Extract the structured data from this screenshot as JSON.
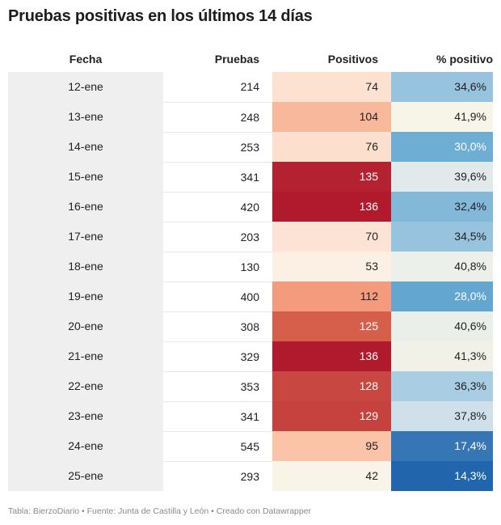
{
  "title": "Pruebas positivas en los últimos 14 días",
  "footer": "Tabla: BierzoDiario • Fuente: Junta de Castilla y León • Creado con Datawrapper",
  "chart_data": {
    "type": "table",
    "title": "Pruebas positivas en los últimos 14 días",
    "columns": [
      "Fecha",
      "Pruebas",
      "Positivos",
      "% positivo"
    ],
    "rows": [
      {
        "fecha": "12-ene",
        "pruebas": "214",
        "positivos": "74",
        "pct": "34,6%",
        "pos_color": "#fde2d2",
        "pct_color": "#97c3de",
        "pos_text": "#222222",
        "pct_text": "#222222"
      },
      {
        "fecha": "13-ene",
        "pruebas": "248",
        "positivos": "104",
        "pct": "41,9%",
        "pos_color": "#f8b89b",
        "pct_color": "#f7f4e8",
        "pos_text": "#222222",
        "pct_text": "#222222"
      },
      {
        "fecha": "14-ene",
        "pruebas": "253",
        "positivos": "76",
        "pct": "30,0%",
        "pos_color": "#fcdfcd",
        "pct_color": "#6eaed4",
        "pos_text": "#222222",
        "pct_text": "#ffffff"
      },
      {
        "fecha": "15-ene",
        "pruebas": "341",
        "positivos": "135",
        "pct": "39,6%",
        "pos_color": "#b42131",
        "pct_color": "#e2e9ea",
        "pos_text": "#ffffff",
        "pct_text": "#222222"
      },
      {
        "fecha": "16-ene",
        "pruebas": "420",
        "positivos": "136",
        "pct": "32,4%",
        "pos_color": "#b1192c",
        "pct_color": "#83b8d9",
        "pos_text": "#ffffff",
        "pct_text": "#222222"
      },
      {
        "fecha": "17-ene",
        "pruebas": "203",
        "positivos": "70",
        "pct": "34,5%",
        "pos_color": "#fde3d5",
        "pct_color": "#97c3de",
        "pos_text": "#222222",
        "pct_text": "#222222"
      },
      {
        "fecha": "18-ene",
        "pruebas": "130",
        "positivos": "53",
        "pct": "40,8%",
        "pos_color": "#fcefe3",
        "pct_color": "#ecefea",
        "pos_text": "#222222",
        "pct_text": "#222222"
      },
      {
        "fecha": "19-ene",
        "pruebas": "400",
        "positivos": "112",
        "pct": "28,0%",
        "pos_color": "#f39b7c",
        "pct_color": "#63a7d1",
        "pos_text": "#222222",
        "pct_text": "#ffffff"
      },
      {
        "fecha": "20-ene",
        "pruebas": "308",
        "positivos": "125",
        "pct": "40,6%",
        "pos_color": "#d65f4b",
        "pct_color": "#ebefe9",
        "pos_text": "#ffffff",
        "pct_text": "#222222"
      },
      {
        "fecha": "21-ene",
        "pruebas": "329",
        "positivos": "136",
        "pct": "41,3%",
        "pos_color": "#b1192c",
        "pct_color": "#f2f1e8",
        "pos_text": "#ffffff",
        "pct_text": "#222222"
      },
      {
        "fecha": "22-ene",
        "pruebas": "353",
        "positivos": "128",
        "pct": "36,3%",
        "pos_color": "#c94741",
        "pct_color": "#a9cde3",
        "pos_text": "#ffffff",
        "pct_text": "#222222"
      },
      {
        "fecha": "23-ene",
        "pruebas": "341",
        "positivos": "129",
        "pct": "37,8%",
        "pos_color": "#c6423e",
        "pct_color": "#cfe0ea",
        "pos_text": "#ffffff",
        "pct_text": "#222222"
      },
      {
        "fecha": "24-ene",
        "pruebas": "545",
        "positivos": "95",
        "pct": "17,4%",
        "pos_color": "#fbc4a9",
        "pct_color": "#3676b4",
        "pos_text": "#222222",
        "pct_text": "#ffffff"
      },
      {
        "fecha": "25-ene",
        "pruebas": "293",
        "positivos": "42",
        "pct": "14,3%",
        "pos_color": "#f8f5e8",
        "pct_color": "#2166ac",
        "pos_text": "#222222",
        "pct_text": "#ffffff"
      }
    ]
  }
}
